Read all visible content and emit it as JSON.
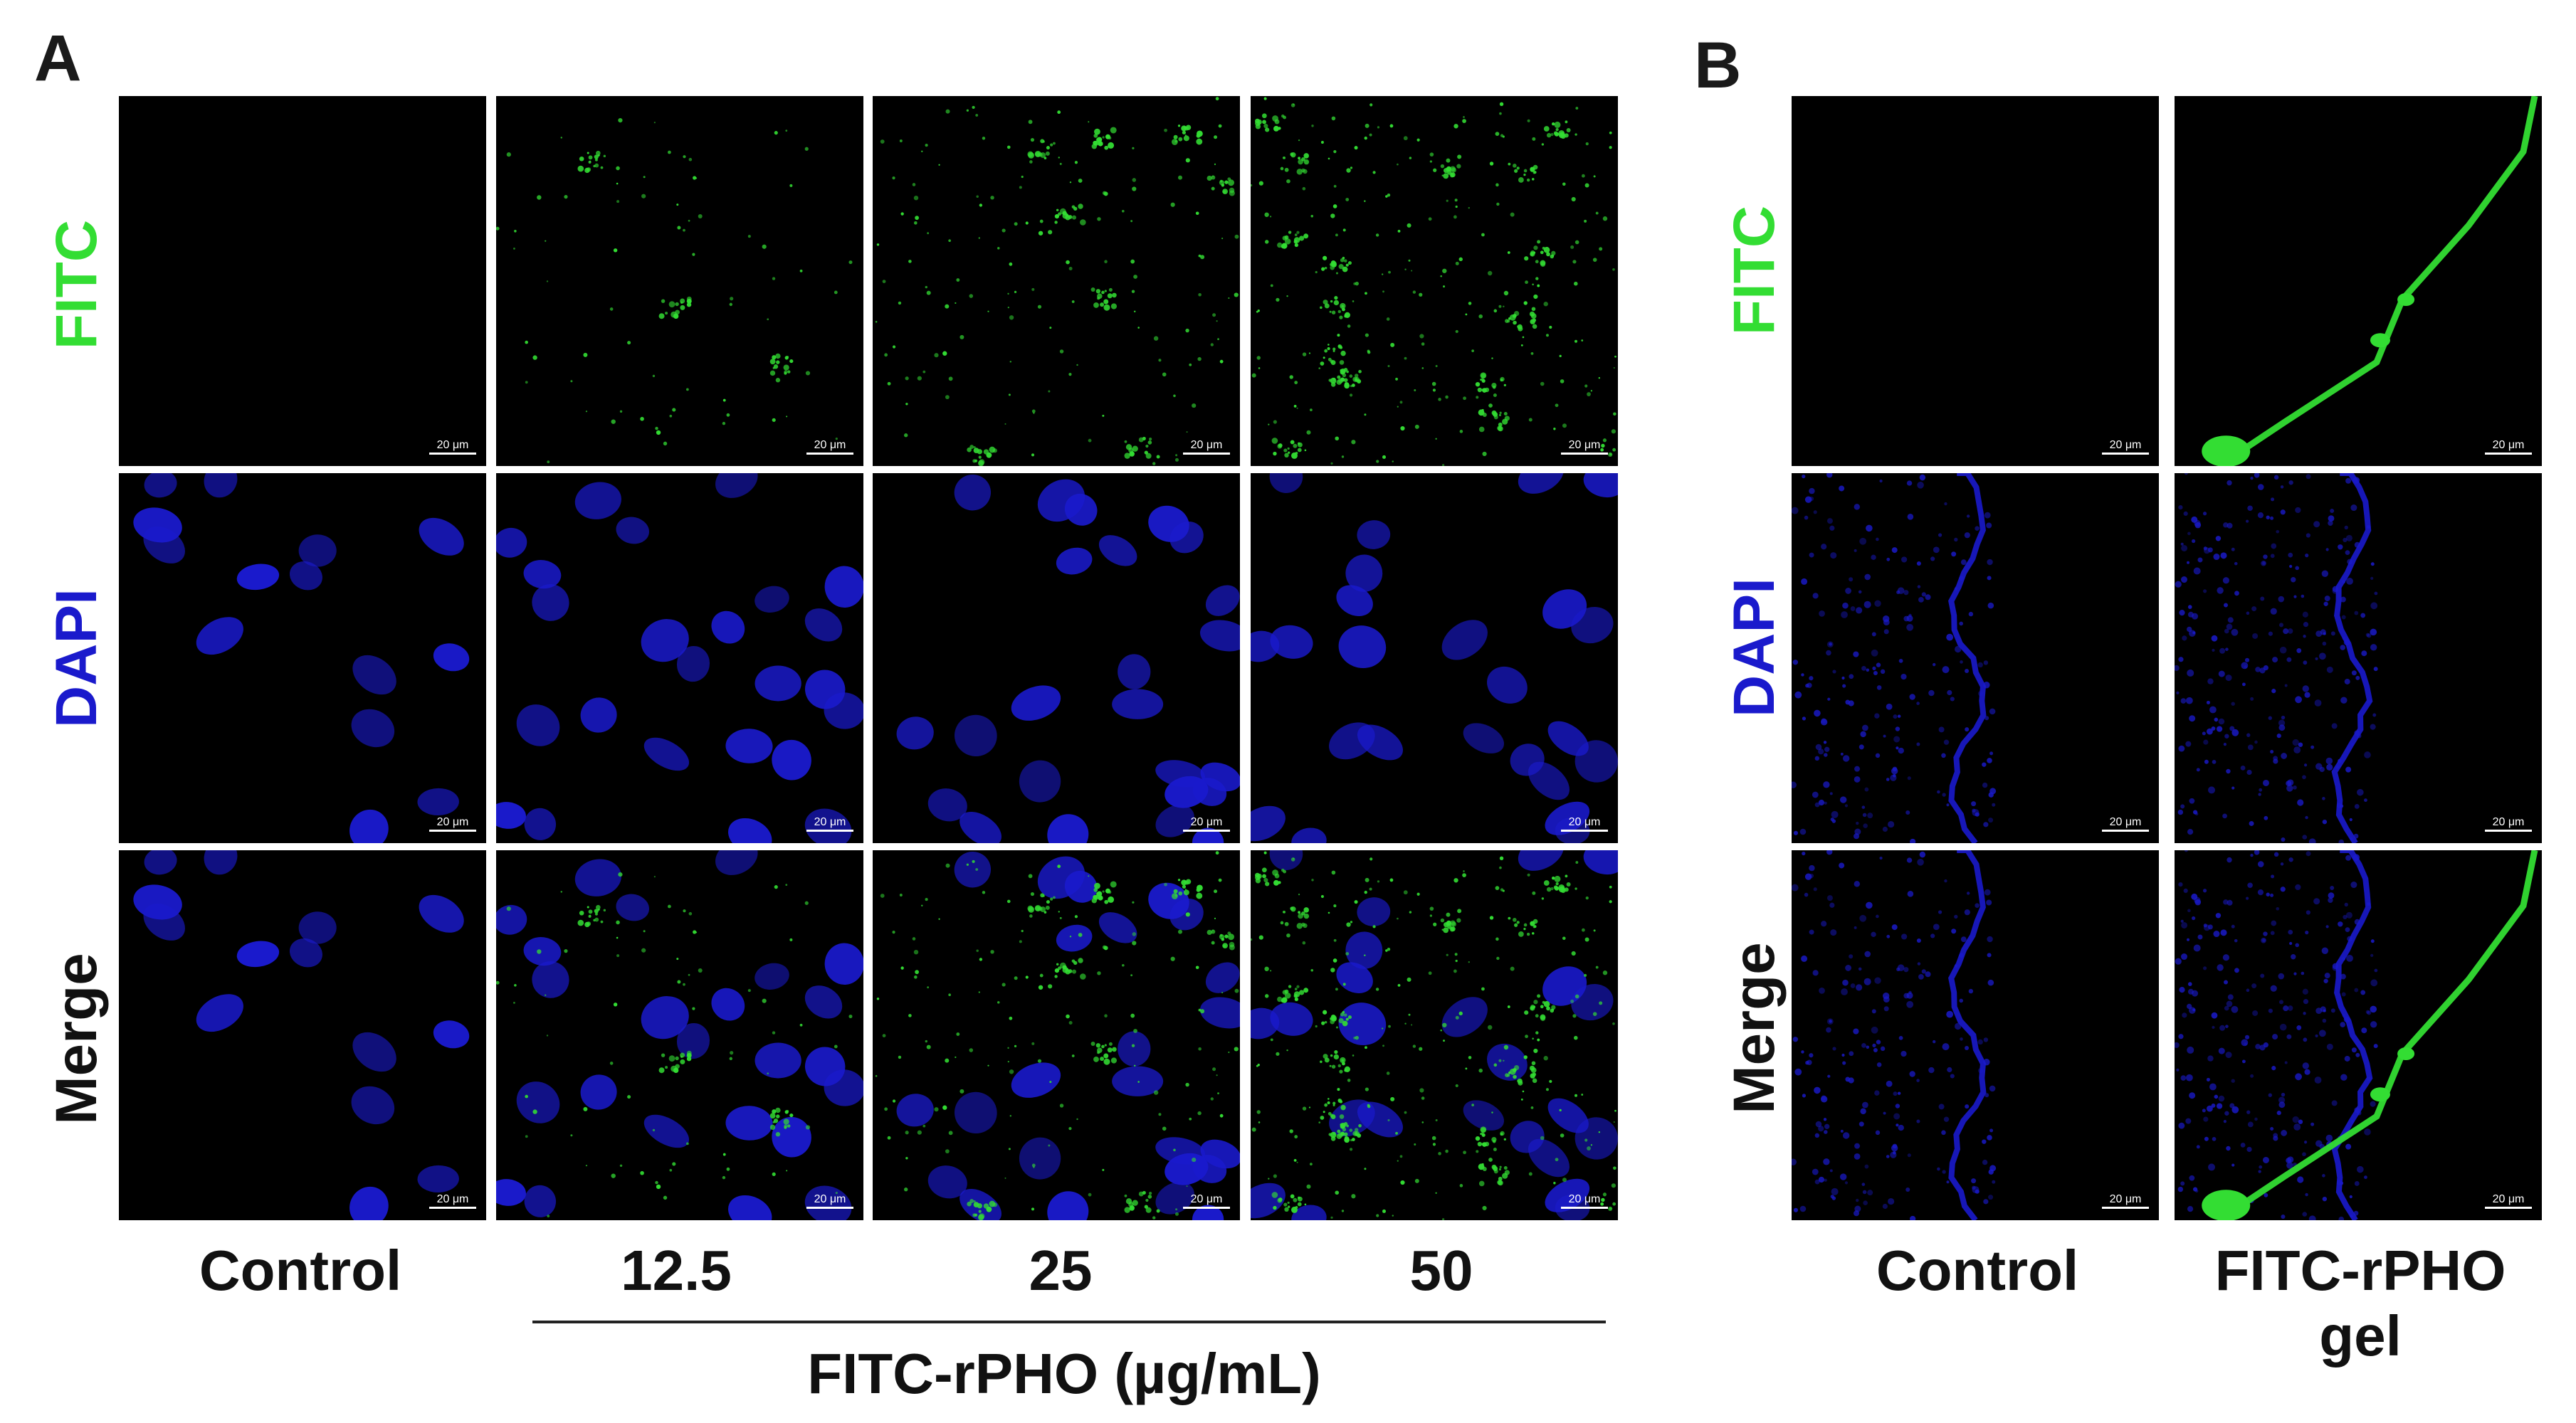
{
  "panels": {
    "A": {
      "letter": "A",
      "rows": [
        "FITC",
        "DAPI",
        "Merge"
      ],
      "columns": [
        "Control",
        "12.5",
        "25",
        "50"
      ],
      "group_label": "FITC-rPHO (µg/mL)"
    },
    "B": {
      "letter": "B",
      "rows": [
        "FITC",
        "DAPI",
        "Merge"
      ],
      "columns": [
        "Control",
        "FITC-rPHO",
        "gel"
      ]
    }
  },
  "scale_bar": "20 μm",
  "colors": {
    "fitc": "#33dd33",
    "dapi": "#1a1acc",
    "merge": "#111111",
    "background": "#000000"
  }
}
